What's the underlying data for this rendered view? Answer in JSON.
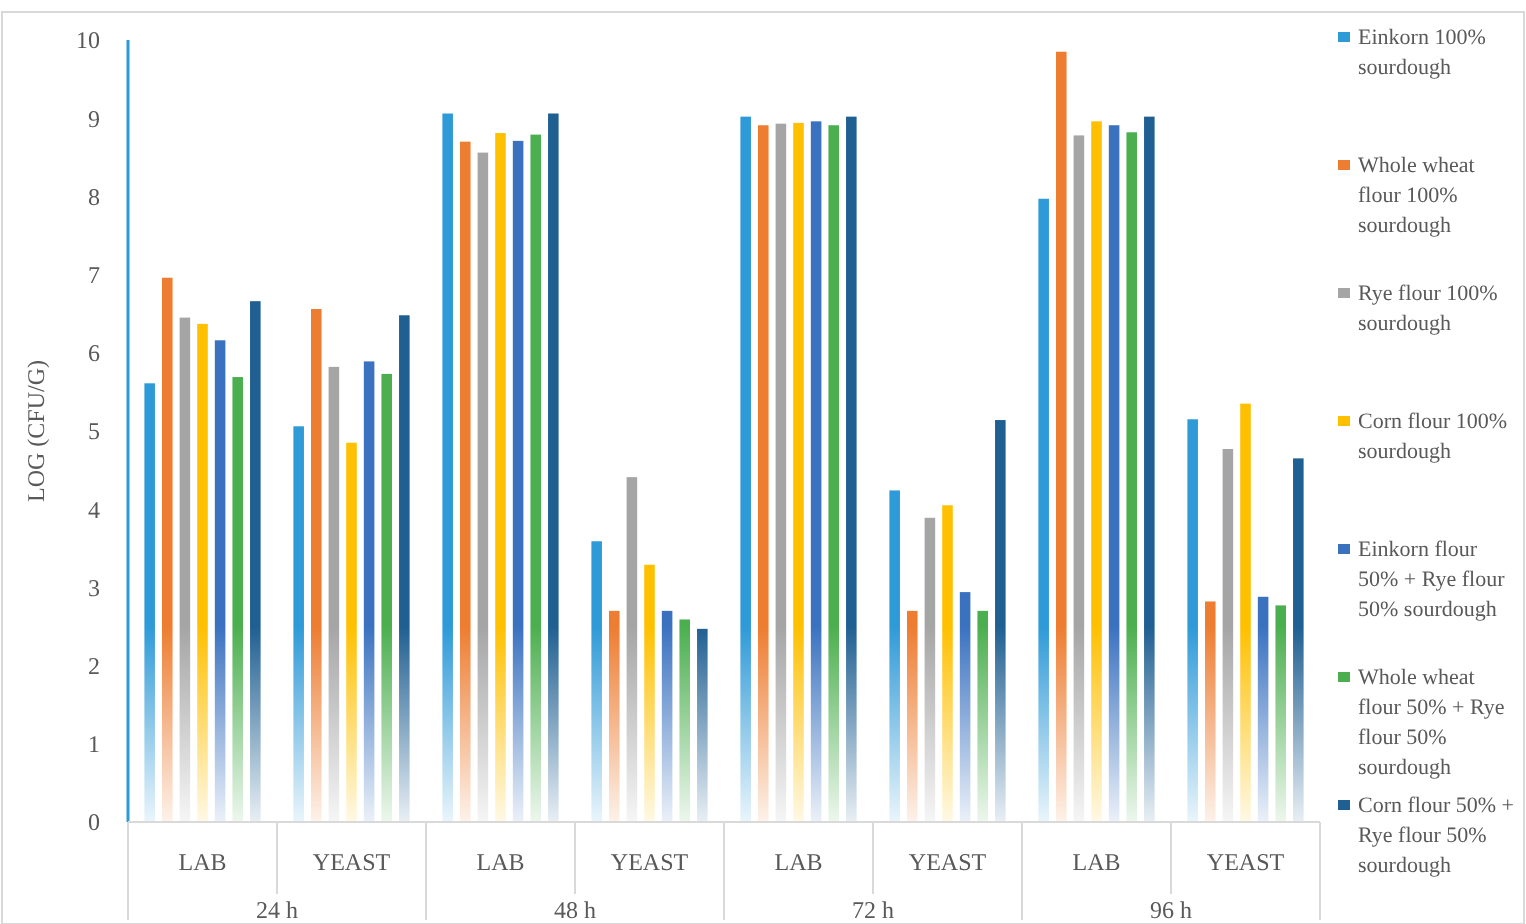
{
  "chart_data": {
    "type": "bar",
    "ylabel": "LOG (CFU/G)",
    "categories": [
      "LAB",
      "YEAST",
      "LAB",
      "YEAST",
      "LAB",
      "YEAST",
      "LAB",
      "YEAST"
    ],
    "annotations": [
      "24 h",
      "48 h",
      "72 h",
      "96 h"
    ],
    "ylim": [
      0,
      10
    ],
    "yticks": [
      0,
      1,
      2,
      3,
      4,
      5,
      6,
      7,
      8,
      9,
      10
    ],
    "legend": "right",
    "series": [
      {
        "name": "Einkorn 100% sourdough",
        "color": "#2e9ad8",
        "values": [
          5.61,
          5.06,
          9.06,
          3.59,
          9.02,
          4.24,
          7.97,
          5.15
        ]
      },
      {
        "name": "Whole wheat flour 100% sourdough",
        "color": "#ed7d31",
        "values": [
          6.96,
          6.56,
          8.7,
          2.7,
          8.91,
          2.7,
          9.85,
          2.82
        ]
      },
      {
        "name": "Rye flour 100% sourdough",
        "color": "#a5a5a5",
        "values": [
          6.45,
          5.82,
          8.56,
          4.41,
          8.93,
          3.89,
          8.78,
          4.77
        ]
      },
      {
        "name": "Corn flour 100% sourdough",
        "color": "#ffc000",
        "values": [
          6.37,
          4.85,
          8.81,
          3.29,
          8.94,
          4.05,
          8.96,
          5.35
        ]
      },
      {
        "name": "Einkorn flour 50% + Rye flour 50% sourdough",
        "color": "#3a72c0",
        "values": [
          6.16,
          5.89,
          8.71,
          2.7,
          8.96,
          2.94,
          8.91,
          2.88
        ]
      },
      {
        "name": "Whole wheat flour 50% + Rye flour 50% sourdough",
        "color": "#4caf4f",
        "values": [
          5.69,
          5.73,
          8.79,
          2.59,
          8.91,
          2.7,
          8.82,
          2.77
        ]
      },
      {
        "name": "Corn flour 50% + Rye flour 50% sourdough",
        "color": "#1f5f91",
        "values": [
          6.66,
          6.48,
          9.06,
          2.47,
          9.02,
          5.14,
          9.02,
          4.65
        ]
      }
    ]
  }
}
